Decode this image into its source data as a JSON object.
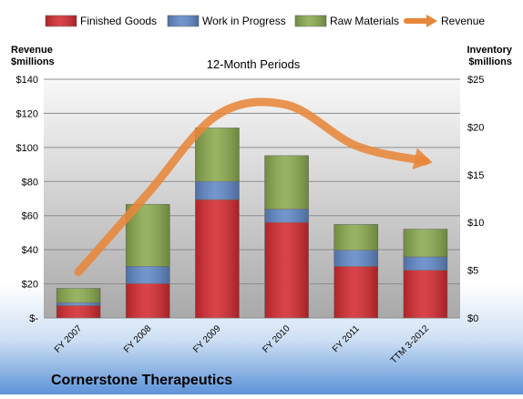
{
  "chart_data": {
    "type": "bar",
    "title": "12-Month Periods",
    "company": "Cornerstone Therapeutics",
    "left_axis_label": [
      "Revenue",
      "$millions"
    ],
    "right_axis_label": [
      "Inventory",
      "$millions"
    ],
    "categories": [
      "FY 2007",
      "FY 2008",
      "FY 2009",
      "FY 2010",
      "FY 2011",
      "TTM 3-2012"
    ],
    "left_ticks": [
      "$-",
      "$20",
      "$40",
      "$60",
      "$80",
      "$100",
      "$120",
      "$140"
    ],
    "right_ticks": [
      "$0",
      "$5",
      "$10",
      "$15",
      "$20",
      "$25"
    ],
    "ylim_left": [
      0,
      140
    ],
    "ylim_right": [
      0,
      25
    ],
    "series": [
      {
        "name": "Finished Goods",
        "axis": "right",
        "color": "#d42a2f",
        "values": [
          1.3,
          3.6,
          12.4,
          10.0,
          5.4,
          5.0
        ]
      },
      {
        "name": "Work in Progress",
        "axis": "right",
        "color": "#6088c8",
        "values": [
          0.3,
          1.8,
          1.9,
          1.4,
          1.7,
          1.4
        ]
      },
      {
        "name": "Raw Materials",
        "axis": "right",
        "color": "#8aaa4e",
        "values": [
          1.5,
          6.5,
          5.6,
          5.6,
          2.7,
          2.9
        ]
      },
      {
        "name": "Revenue",
        "axis": "left",
        "color": "#e8863a",
        "type": "line",
        "values": [
          27,
          73,
          119,
          125,
          101,
          92
        ]
      }
    ],
    "grid": true,
    "legend": "top"
  }
}
